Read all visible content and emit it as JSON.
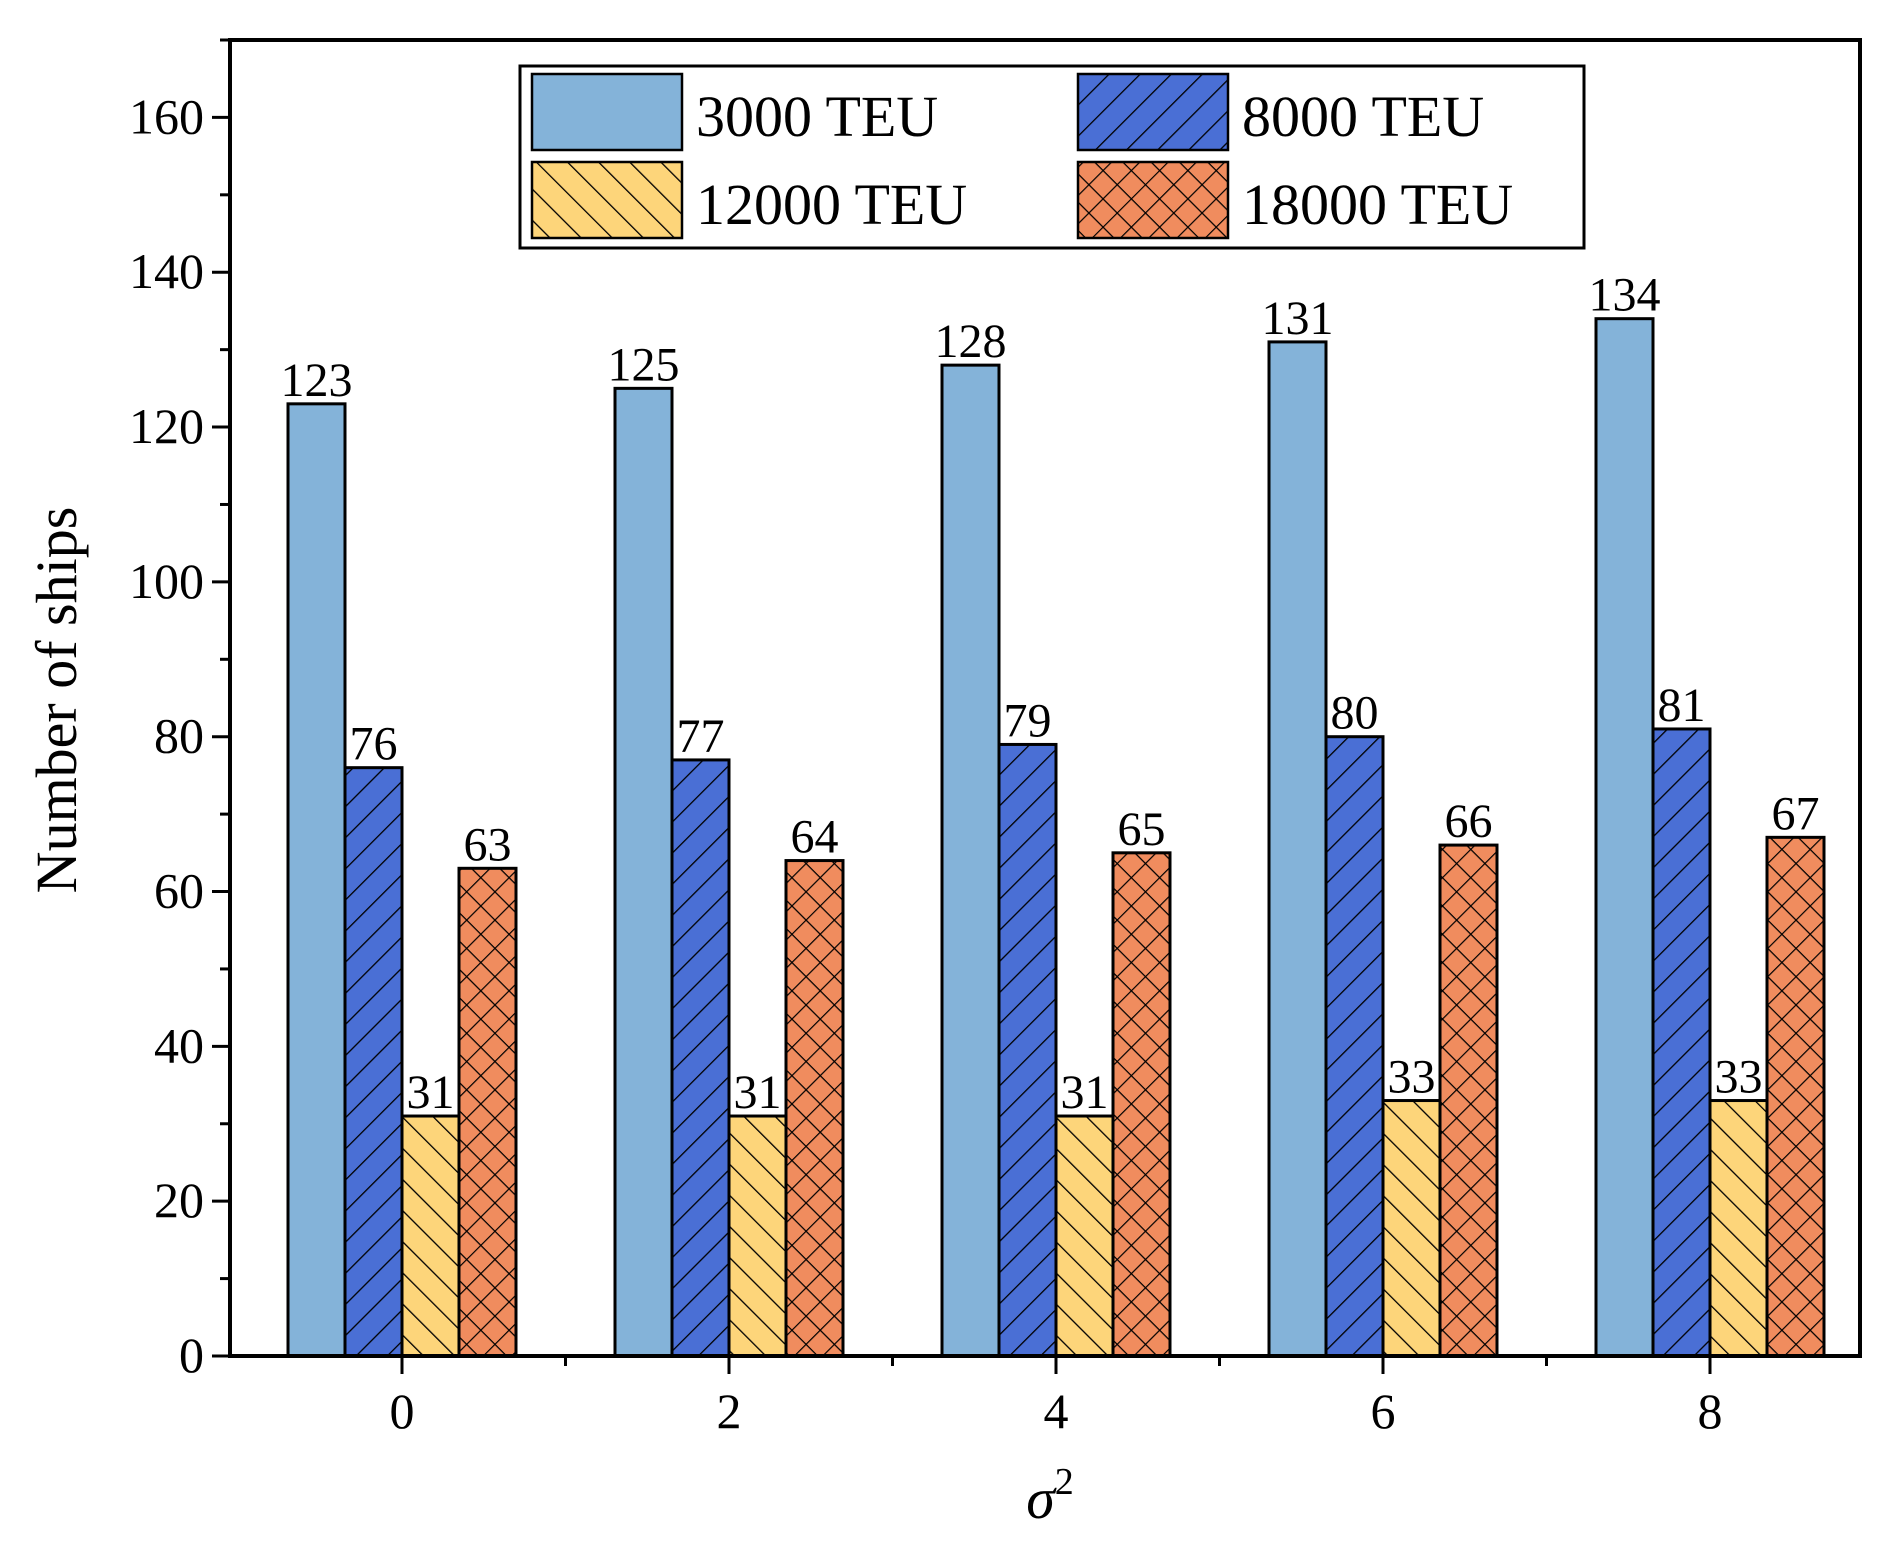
{
  "chart_data": {
    "type": "bar",
    "title": "",
    "xlabel": "σ",
    "xlabel_superscript": "2",
    "ylabel": "Number of ships",
    "ylim": [
      0,
      170
    ],
    "yticks": [
      0,
      20,
      40,
      60,
      80,
      100,
      120,
      140,
      160
    ],
    "categories": [
      "0",
      "2",
      "4",
      "6",
      "8"
    ],
    "legend_position": "top-center",
    "series": [
      {
        "name": "3000 TEU",
        "values": [
          123,
          125,
          128,
          131,
          134
        ],
        "color": "#84b3d9",
        "pattern": "none"
      },
      {
        "name": "8000 TEU",
        "values": [
          76,
          77,
          79,
          80,
          81
        ],
        "color": "#4a6fd5",
        "pattern": "forward-diagonal"
      },
      {
        "name": "12000 TEU",
        "values": [
          31,
          31,
          31,
          33,
          33
        ],
        "color": "#fdd57a",
        "pattern": "back-diagonal"
      },
      {
        "name": "18000 TEU",
        "values": [
          63,
          64,
          65,
          66,
          67
        ],
        "color": "#f08c5e",
        "pattern": "crosshatch"
      }
    ],
    "data_labels": true
  }
}
